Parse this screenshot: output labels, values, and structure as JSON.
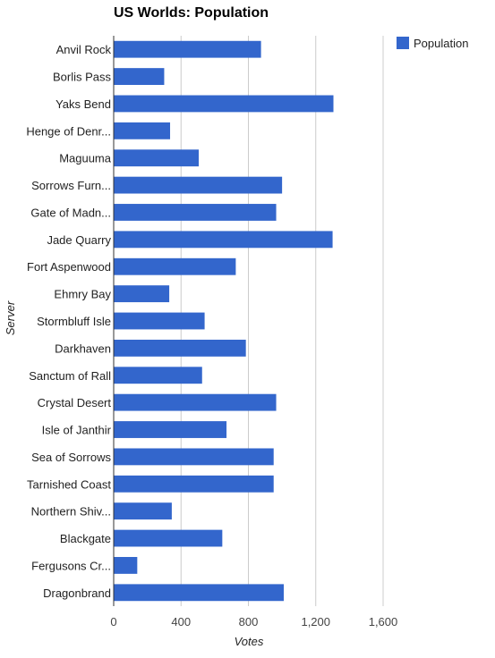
{
  "colors": {
    "bar": "#3366cc",
    "grid": "#cccccc",
    "axis": "#333333"
  },
  "chart_data": {
    "type": "bar",
    "orientation": "horizontal",
    "title": "US Worlds: Population",
    "xlabel": "Votes",
    "ylabel": "Server",
    "xlim": [
      0,
      1600
    ],
    "xticks": [
      0,
      400,
      800,
      1200,
      1600
    ],
    "xtick_labels": [
      "0",
      "400",
      "800",
      "1,200",
      "1,600"
    ],
    "legend": {
      "position": "top-right",
      "entries": [
        "Population"
      ]
    },
    "grid": true,
    "categories": [
      "Anvil Rock",
      "Borlis Pass",
      "Yaks Bend",
      "Henge of Denr...",
      "Maguuma",
      "Sorrows Furn...",
      "Gate of Madn...",
      "Jade Quarry",
      "Fort Aspenwood",
      "Ehmry Bay",
      "Stormbluff Isle",
      "Darkhaven",
      "Sanctum of Rall",
      "Crystal Desert",
      "Isle of Janthir",
      "Sea of Sorrows",
      "Tarnished Coast",
      "Northern Shiv...",
      "Blackgate",
      "Fergusons Cr...",
      "Dragonbrand"
    ],
    "series": [
      {
        "name": "Population",
        "values": [
          875,
          300,
          1305,
          335,
          505,
          1000,
          965,
          1300,
          725,
          330,
          540,
          785,
          525,
          965,
          670,
          950,
          950,
          345,
          645,
          140,
          1010
        ]
      }
    ]
  }
}
